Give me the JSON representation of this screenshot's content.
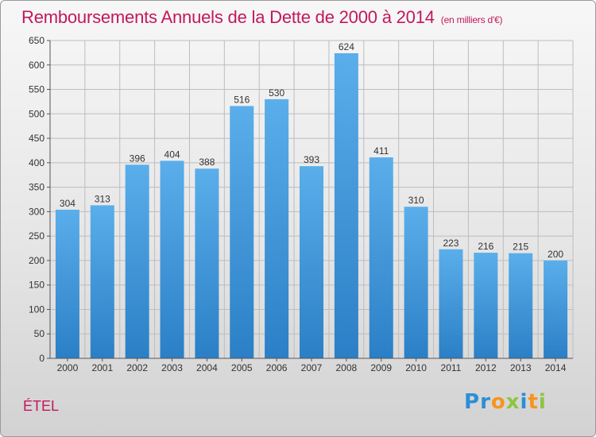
{
  "chart_data": {
    "type": "bar",
    "title": "Remboursements Annuels de la Dette de 2000 à 2014",
    "subtitle": "(en milliers d'€)",
    "categories": [
      "2000",
      "2001",
      "2002",
      "2003",
      "2004",
      "2005",
      "2006",
      "2007",
      "2008",
      "2009",
      "2010",
      "2011",
      "2012",
      "2013",
      "2014"
    ],
    "values": [
      304,
      313,
      396,
      404,
      388,
      516,
      530,
      393,
      624,
      411,
      310,
      223,
      216,
      215,
      200
    ],
    "ylim": [
      0,
      650
    ],
    "yticks": [
      0,
      50,
      100,
      150,
      200,
      250,
      300,
      350,
      400,
      450,
      500,
      550,
      600,
      650
    ],
    "grid": true,
    "bar_color": "#3a8fd6",
    "xlabel": "",
    "ylabel": ""
  },
  "commune": "ÉTEL",
  "logo": {
    "text": "Proxiti",
    "letters": [
      {
        "ch": "P",
        "color": "#2a8fd6"
      },
      {
        "ch": "r",
        "color": "#2a8fd6"
      },
      {
        "ch": "o",
        "color": "#f7941d"
      },
      {
        "ch": "x",
        "color": "#8cc63f"
      },
      {
        "ch": "i",
        "color": "#2a8fd6"
      },
      {
        "ch": "t",
        "color": "#f7941d"
      },
      {
        "ch": "i",
        "color": "#8cc63f"
      }
    ]
  }
}
